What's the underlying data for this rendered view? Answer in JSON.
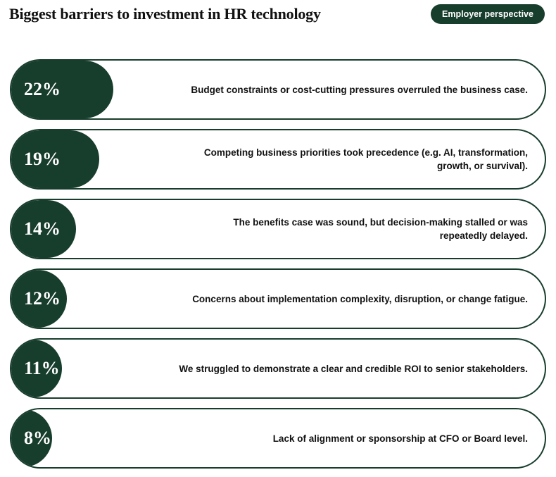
{
  "header": {
    "title": "Biggest barriers to investment in HR technology",
    "badge": "Employer perspective"
  },
  "colors": {
    "bar_fill": "#173d2c",
    "border": "#173d2c",
    "background": "#ffffff",
    "label_text": "#111111",
    "pct_text": "#ffffff"
  },
  "chart_data": {
    "type": "bar",
    "title": "Biggest barriers to investment in HR technology",
    "categories": [
      "Budget constraints or cost-cutting pressures overruled the business case.",
      "Competing business priorities took precedence (e.g. AI, transformation, growth, or survival).",
      "The benefits case was sound, but decision-making stalled or was repeatedly delayed.",
      "Concerns about implementation complexity, disruption, or change fatigue.",
      "We struggled to demonstrate a clear and credible ROI to senior stakeholders.",
      "Lack of alignment or sponsorship at CFO or Board level."
    ],
    "values": [
      22,
      19,
      14,
      12,
      11,
      8
    ],
    "value_labels": [
      "22%",
      "19%",
      "14%",
      "12%",
      "11%",
      "8%"
    ],
    "unit": "%"
  }
}
